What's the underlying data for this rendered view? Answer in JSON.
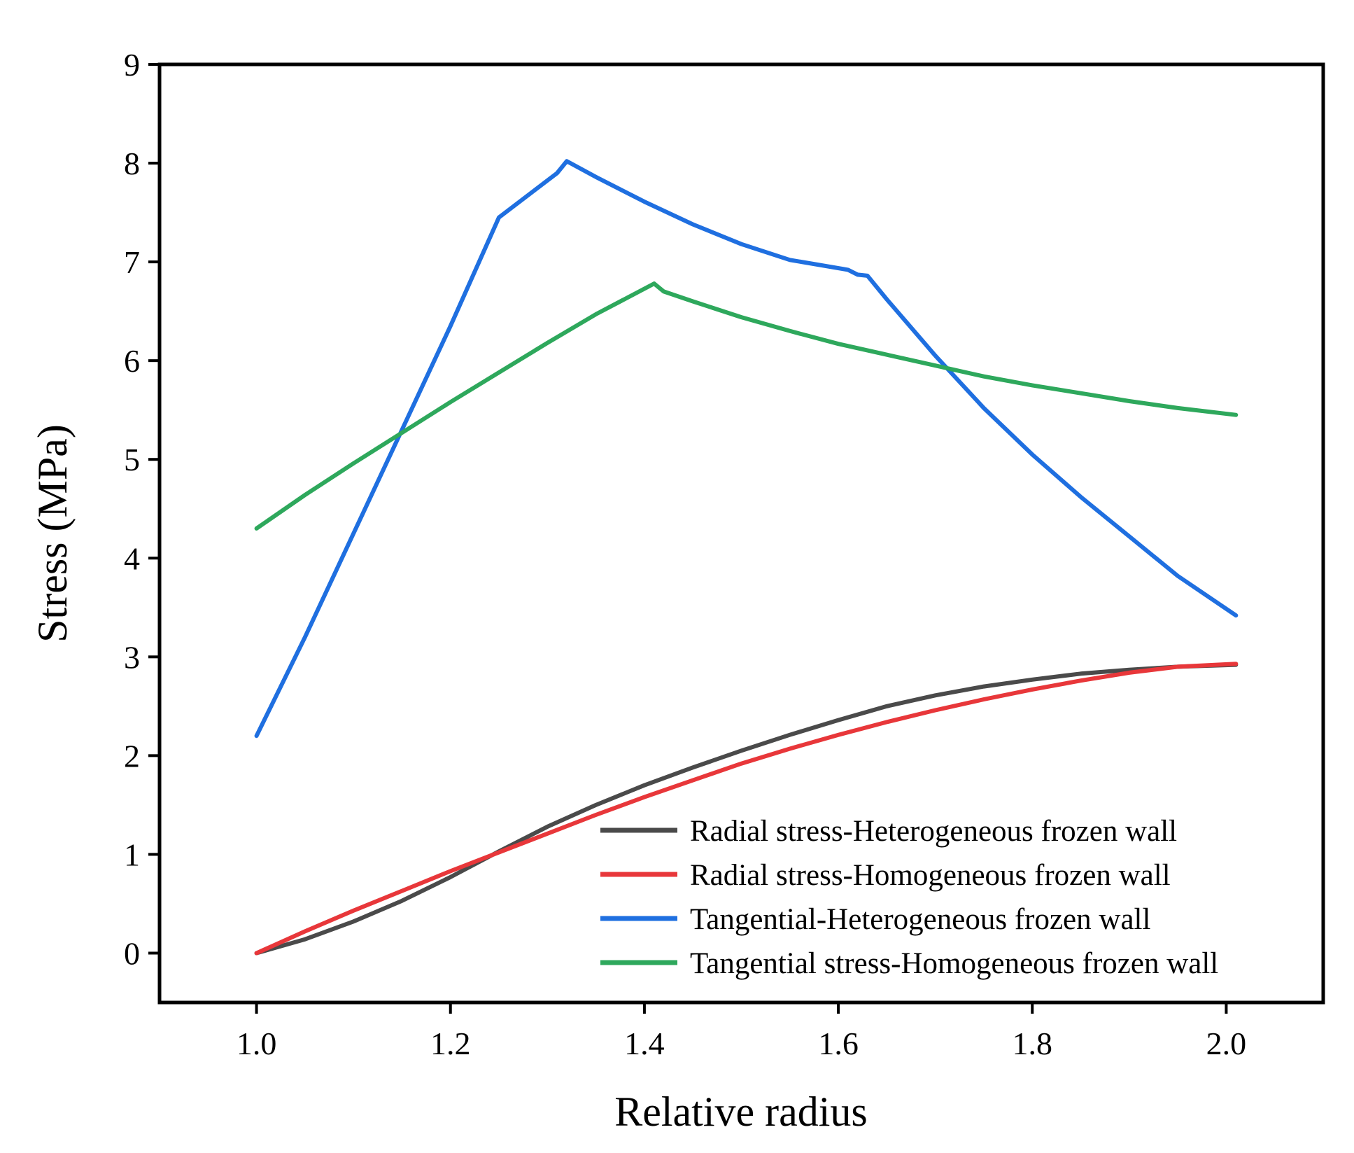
{
  "chart_data": {
    "type": "line",
    "title": "",
    "xlabel": "Relative radius",
    "ylabel": "Stress (MPa)",
    "xlim": [
      0.9,
      2.1
    ],
    "ylim": [
      -0.5,
      9
    ],
    "xticks": [
      1.0,
      1.2,
      1.4,
      1.6,
      1.8,
      2.0
    ],
    "xtick_labels": [
      "1.0",
      "1.2",
      "1.4",
      "1.6",
      "1.8",
      "2.0"
    ],
    "yticks": [
      0,
      1,
      2,
      3,
      4,
      5,
      6,
      7,
      8,
      9
    ],
    "ytick_labels": [
      "0",
      "1",
      "2",
      "3",
      "4",
      "5",
      "6",
      "7",
      "8",
      "9"
    ],
    "grid": false,
    "legend_position": "bottom-right",
    "series": [
      {
        "name": "Radial stress-Heterogeneous frozen wall",
        "color": "#4a4a4a",
        "x": [
          1.0,
          1.05,
          1.1,
          1.15,
          1.2,
          1.25,
          1.3,
          1.35,
          1.4,
          1.45,
          1.5,
          1.55,
          1.6,
          1.65,
          1.7,
          1.75,
          1.8,
          1.85,
          1.9,
          1.95,
          2.01
        ],
        "y": [
          0.0,
          0.14,
          0.32,
          0.53,
          0.77,
          1.03,
          1.28,
          1.5,
          1.7,
          1.88,
          2.05,
          2.21,
          2.36,
          2.5,
          2.61,
          2.7,
          2.77,
          2.83,
          2.87,
          2.9,
          2.92
        ]
      },
      {
        "name": "Radial stress-Homogeneous frozen wall",
        "color": "#e8373a",
        "x": [
          1.0,
          1.05,
          1.1,
          1.15,
          1.2,
          1.25,
          1.3,
          1.35,
          1.4,
          1.45,
          1.5,
          1.55,
          1.6,
          1.65,
          1.7,
          1.75,
          1.8,
          1.85,
          1.9,
          1.95,
          2.01
        ],
        "y": [
          0.0,
          0.22,
          0.43,
          0.63,
          0.83,
          1.02,
          1.21,
          1.4,
          1.58,
          1.75,
          1.92,
          2.07,
          2.21,
          2.34,
          2.46,
          2.57,
          2.67,
          2.76,
          2.84,
          2.9,
          2.93
        ]
      },
      {
        "name": "Tangential-Heterogeneous frozen wall",
        "color": "#1f6fe0",
        "x": [
          1.0,
          1.05,
          1.1,
          1.15,
          1.2,
          1.25,
          1.31,
          1.32,
          1.35,
          1.4,
          1.45,
          1.5,
          1.55,
          1.61,
          1.62,
          1.63,
          1.65,
          1.7,
          1.75,
          1.8,
          1.85,
          1.9,
          1.95,
          2.01
        ],
        "y": [
          2.2,
          3.2,
          4.25,
          5.3,
          6.35,
          7.45,
          7.9,
          8.02,
          7.86,
          7.61,
          7.38,
          7.18,
          7.02,
          6.92,
          6.87,
          6.86,
          6.62,
          6.05,
          5.52,
          5.05,
          4.62,
          4.22,
          3.82,
          3.42
        ]
      },
      {
        "name": "Tangential stress-Homogeneous frozen wall",
        "color": "#2ea85c",
        "x": [
          1.0,
          1.05,
          1.1,
          1.15,
          1.2,
          1.25,
          1.3,
          1.35,
          1.41,
          1.42,
          1.45,
          1.5,
          1.55,
          1.6,
          1.65,
          1.7,
          1.75,
          1.8,
          1.85,
          1.9,
          1.95,
          2.01
        ],
        "y": [
          4.3,
          4.64,
          4.96,
          5.27,
          5.58,
          5.88,
          6.18,
          6.47,
          6.78,
          6.7,
          6.6,
          6.44,
          6.3,
          6.17,
          6.06,
          5.95,
          5.84,
          5.75,
          5.67,
          5.59,
          5.52,
          5.45
        ]
      }
    ]
  }
}
